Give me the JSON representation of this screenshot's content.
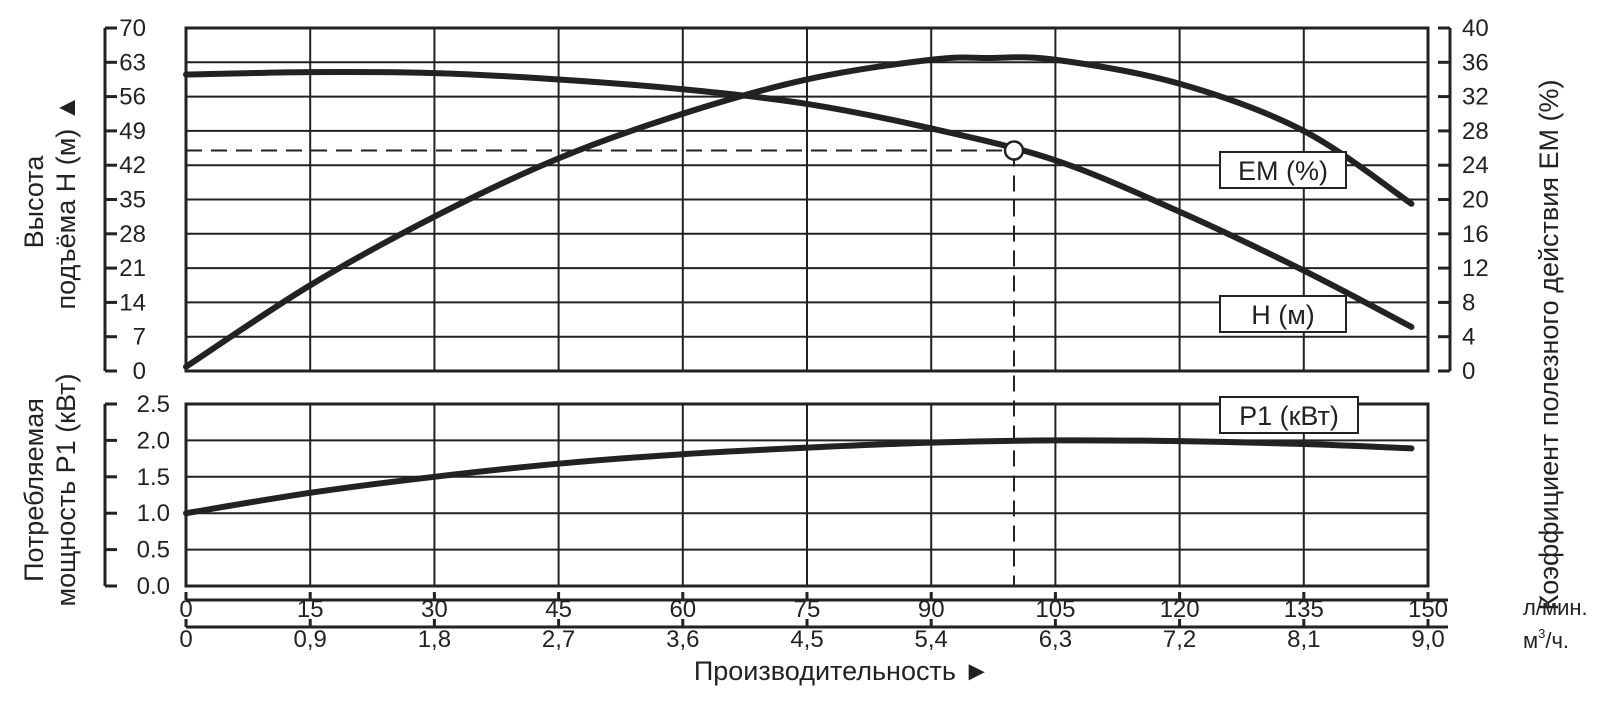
{
  "chart_data": {
    "type": "line",
    "panels": {
      "head_efficiency": {
        "left_axis": {
          "label_line1": "Высота",
          "label_line2": "подъёма H (м) ▲",
          "range": [
            0,
            70
          ],
          "ticks": [
            "0",
            "7",
            "14",
            "21",
            "28",
            "35",
            "42",
            "49",
            "56",
            "63",
            "70"
          ]
        },
        "right_axis": {
          "label": "Коэффициент полезного действия ЕМ (%)",
          "range": [
            0,
            40
          ],
          "ticks": [
            "0",
            "4",
            "8",
            "12",
            "16",
            "20",
            "24",
            "28",
            "32",
            "36",
            "40"
          ]
        },
        "series": [
          {
            "name": "H (м)",
            "axis": "left",
            "x": [
              0,
              15,
              30,
              45,
              60,
              75,
              90,
              105,
              120,
              135,
              148
            ],
            "y": [
              60.5,
              61.0,
              60.8,
              59.5,
              57.5,
              54.5,
              49.5,
              43.0,
              32.5,
              20.5,
              9.0
            ]
          },
          {
            "name": "ЕМ (%)",
            "axis": "right",
            "x": [
              0,
              15,
              30,
              45,
              60,
              75,
              90,
              97,
              105,
              120,
              135,
              148
            ],
            "y": [
              0.5,
              10.0,
              18.0,
              24.8,
              30.0,
              34.0,
              36.3,
              36.5,
              36.3,
              33.5,
              28.0,
              19.5
            ]
          }
        ]
      },
      "power": {
        "left_axis": {
          "label_line1": "Потребляемая",
          "label_line2": "мощность P1 (кВт)",
          "range": [
            0,
            2.5
          ],
          "ticks": [
            "0.0",
            "0.5",
            "1.0",
            "1.5",
            "2.0",
            "2.5"
          ]
        },
        "series": [
          {
            "name": "P1 (кВт)",
            "x": [
              0,
              15,
              30,
              45,
              60,
              75,
              90,
              105,
              120,
              135,
              148
            ],
            "y": [
              1.0,
              1.28,
              1.5,
              1.68,
              1.81,
              1.9,
              1.97,
              2.0,
              1.99,
              1.95,
              1.89
            ]
          }
        ]
      }
    },
    "x_axis": {
      "label": "Производительность ►",
      "range": [
        0,
        150
      ],
      "ticks_lpm": [
        "0",
        "15",
        "30",
        "45",
        "60",
        "75",
        "90",
        "105",
        "120",
        "135",
        "150"
      ],
      "ticks_m3h": [
        "0",
        "0,9",
        "1,8",
        "2,7",
        "3,6",
        "4,5",
        "5,4",
        "6,3",
        "7,2",
        "8,1",
        "9,0"
      ],
      "unit_lpm": "л/мин.",
      "unit_m3h_base": "м",
      "unit_m3h_sup": "3",
      "unit_m3h_suffix": "/ч."
    },
    "operating_point": {
      "x": 100,
      "y": 45
    },
    "grid": true
  }
}
